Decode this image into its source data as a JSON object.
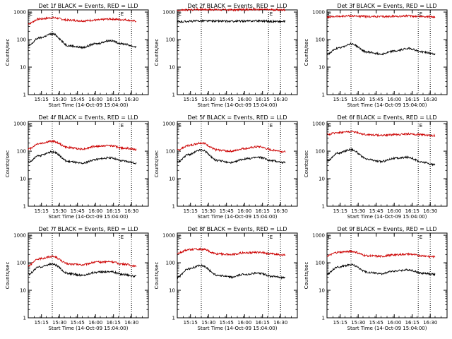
{
  "colors": {
    "events": "#000000",
    "lld": "#cc0000",
    "frame": "#000000",
    "background": "#ffffff"
  },
  "common": {
    "xlabel": "Start Time (14-Oct-09 15:04:00)",
    "ylabel": "Counts/sec",
    "x_tick_labels": [
      "15:15",
      "15:30",
      "15:45",
      "16:00",
      "16:15",
      "16:30"
    ],
    "y_tick_labels": [
      "1",
      "10",
      "100",
      "1000"
    ],
    "marker_label": "E"
  },
  "chart_data": [
    {
      "type": "line",
      "title": "Det 1f BLACK = Events, RED = LLD",
      "xlabel": "Start Time (14-Oct-09 15:04:00)",
      "ylabel": "Counts/sec",
      "x_minutes": [
        0,
        9,
        20,
        34,
        45,
        56,
        68,
        79,
        90
      ],
      "xlim": [
        0,
        100
      ],
      "ylim": [
        1,
        1200
      ],
      "yscale": "log",
      "x_ticks_minutes": [
        11,
        26,
        41,
        56,
        71,
        86
      ],
      "vlines_minutes": [
        20,
        76,
        86
      ],
      "markers_minutes": [
        0,
        76
      ],
      "series": [
        {
          "name": "LLD",
          "values": [
            380,
            560,
            620,
            510,
            480,
            510,
            560,
            530,
            470
          ]
        },
        {
          "name": "Events",
          "values": [
            60,
            115,
            160,
            60,
            52,
            70,
            92,
            70,
            55
          ]
        }
      ]
    },
    {
      "type": "line",
      "title": "Det 2f BLACK = Events, RED = LLD",
      "xlabel": "Start Time (14-Oct-09 15:04:00)",
      "ylabel": "Counts/sec",
      "x_minutes": [
        0,
        9,
        20,
        34,
        45,
        56,
        68,
        79,
        90
      ],
      "xlim": [
        0,
        100
      ],
      "ylim": [
        1,
        1200
      ],
      "yscale": "log",
      "x_ticks_minutes": [
        11,
        26,
        41,
        56,
        71,
        86
      ],
      "vlines_minutes": [
        20,
        76,
        86
      ],
      "markers_minutes": [
        0,
        76
      ],
      "series": [
        {
          "name": "LLD",
          "values": [
            1150,
            1200,
            1250,
            1220,
            1200,
            1230,
            1240,
            1210,
            1200
          ]
        },
        {
          "name": "Events",
          "values": [
            440,
            460,
            480,
            470,
            460,
            470,
            480,
            460,
            450
          ]
        }
      ]
    },
    {
      "type": "line",
      "title": "Det 3f BLACK = Events, RED = LLD",
      "xlabel": "Start Time (14-Oct-09 15:04:00)",
      "ylabel": "Counts/sec",
      "x_minutes": [
        0,
        9,
        20,
        34,
        45,
        56,
        68,
        79,
        90
      ],
      "xlim": [
        0,
        100
      ],
      "ylim": [
        1,
        1200
      ],
      "yscale": "log",
      "x_ticks_minutes": [
        11,
        26,
        41,
        56,
        71,
        86
      ],
      "vlines_minutes": [
        20,
        76,
        86
      ],
      "markers_minutes": [
        0,
        76
      ],
      "series": [
        {
          "name": "LLD",
          "values": [
            650,
            700,
            720,
            690,
            680,
            700,
            720,
            690,
            670
          ]
        },
        {
          "name": "Events",
          "values": [
            30,
            48,
            70,
            35,
            30,
            38,
            48,
            36,
            30
          ]
        }
      ]
    },
    {
      "type": "line",
      "title": "Det 4f BLACK = Events, RED = LLD",
      "xlabel": "Start Time (14-Oct-09 15:04:00)",
      "ylabel": "Counts/sec",
      "x_minutes": [
        0,
        9,
        20,
        34,
        45,
        56,
        68,
        79,
        90
      ],
      "xlim": [
        0,
        100
      ],
      "ylim": [
        1,
        1200
      ],
      "yscale": "log",
      "x_ticks_minutes": [
        11,
        26,
        41,
        56,
        71,
        86
      ],
      "vlines_minutes": [
        20,
        76,
        86
      ],
      "markers_minutes": [
        0,
        76
      ],
      "series": [
        {
          "name": "LLD",
          "values": [
            120,
            190,
            230,
            135,
            120,
            150,
            160,
            130,
            115
          ]
        },
        {
          "name": "Events",
          "values": [
            40,
            68,
            95,
            42,
            36,
            50,
            58,
            44,
            37
          ]
        }
      ]
    },
    {
      "type": "line",
      "title": "Det 5f BLACK = Events, RED = LLD",
      "xlabel": "Start Time (14-Oct-09 15:04:00)",
      "ylabel": "Counts/sec",
      "x_minutes": [
        0,
        9,
        20,
        34,
        45,
        56,
        68,
        79,
        90
      ],
      "xlim": [
        0,
        100
      ],
      "ylim": [
        1,
        1200
      ],
      "yscale": "log",
      "x_ticks_minutes": [
        11,
        26,
        41,
        56,
        71,
        86
      ],
      "vlines_minutes": [
        20,
        76,
        86
      ],
      "markers_minutes": [
        0,
        76
      ],
      "series": [
        {
          "name": "LLD",
          "values": [
            110,
            160,
            200,
            110,
            100,
            125,
            145,
            110,
            95
          ]
        },
        {
          "name": "Events",
          "values": [
            40,
            75,
            110,
            45,
            38,
            52,
            60,
            45,
            38
          ]
        }
      ]
    },
    {
      "type": "line",
      "title": "Det 6f BLACK = Events, RED = LLD",
      "xlabel": "Start Time (14-Oct-09 15:04:00)",
      "ylabel": "Counts/sec",
      "x_minutes": [
        0,
        9,
        20,
        34,
        45,
        56,
        68,
        79,
        90
      ],
      "xlim": [
        0,
        100
      ],
      "ylim": [
        1,
        1200
      ],
      "yscale": "log",
      "x_ticks_minutes": [
        11,
        26,
        41,
        56,
        71,
        86
      ],
      "vlines_minutes": [
        20,
        76,
        86
      ],
      "markers_minutes": [
        0,
        76
      ],
      "series": [
        {
          "name": "LLD",
          "values": [
            400,
            480,
            510,
            400,
            380,
            400,
            420,
            400,
            370
          ]
        },
        {
          "name": "Events",
          "values": [
            45,
            85,
            115,
            50,
            42,
            55,
            60,
            40,
            32
          ]
        }
      ]
    },
    {
      "type": "line",
      "title": "Det 7f BLACK = Events, RED = LLD",
      "xlabel": "Start Time (14-Oct-09 15:04:00)",
      "ylabel": "Counts/sec",
      "x_minutes": [
        0,
        9,
        20,
        34,
        45,
        56,
        68,
        79,
        90
      ],
      "xlim": [
        0,
        100
      ],
      "ylim": [
        1,
        1200
      ],
      "yscale": "log",
      "x_ticks_minutes": [
        11,
        26,
        41,
        56,
        71,
        86
      ],
      "vlines_minutes": [
        20,
        76,
        86
      ],
      "markers_minutes": [
        0,
        76
      ],
      "series": [
        {
          "name": "LLD",
          "values": [
            80,
            140,
            170,
            90,
            85,
            105,
            110,
            90,
            75
          ]
        },
        {
          "name": "Events",
          "values": [
            38,
            70,
            90,
            40,
            35,
            45,
            48,
            38,
            32
          ]
        }
      ]
    },
    {
      "type": "line",
      "title": "Det 8f BLACK = Events, RED = LLD",
      "xlabel": "Start Time (14-Oct-09 15:04:00)",
      "ylabel": "Counts/sec",
      "x_minutes": [
        0,
        9,
        20,
        34,
        45,
        56,
        68,
        79,
        90
      ],
      "xlim": [
        0,
        100
      ],
      "ylim": [
        1,
        1200
      ],
      "yscale": "log",
      "x_ticks_minutes": [
        11,
        26,
        41,
        56,
        71,
        86
      ],
      "vlines_minutes": [
        20,
        76,
        86
      ],
      "markers_minutes": [
        0,
        76
      ],
      "series": [
        {
          "name": "LLD",
          "values": [
            220,
            300,
            310,
            210,
            200,
            230,
            240,
            210,
            190
          ]
        },
        {
          "name": "Events",
          "values": [
            30,
            60,
            80,
            35,
            30,
            38,
            42,
            32,
            28
          ]
        }
      ]
    },
    {
      "type": "line",
      "title": "Det 9f BLACK = Events, RED = LLD",
      "xlabel": "Start Time (14-Oct-09 15:04:00)",
      "ylabel": "Counts/sec",
      "x_minutes": [
        0,
        9,
        20,
        34,
        45,
        56,
        68,
        79,
        90
      ],
      "xlim": [
        0,
        100
      ],
      "ylim": [
        1,
        1200
      ],
      "yscale": "log",
      "x_ticks_minutes": [
        11,
        26,
        41,
        56,
        71,
        86
      ],
      "vlines_minutes": [
        20,
        76,
        86
      ],
      "markers_minutes": [
        0,
        76
      ],
      "series": [
        {
          "name": "LLD",
          "values": [
            180,
            240,
            260,
            180,
            170,
            195,
            205,
            180,
            165
          ]
        },
        {
          "name": "Events",
          "values": [
            40,
            70,
            85,
            45,
            40,
            50,
            55,
            42,
            38
          ]
        }
      ]
    }
  ]
}
